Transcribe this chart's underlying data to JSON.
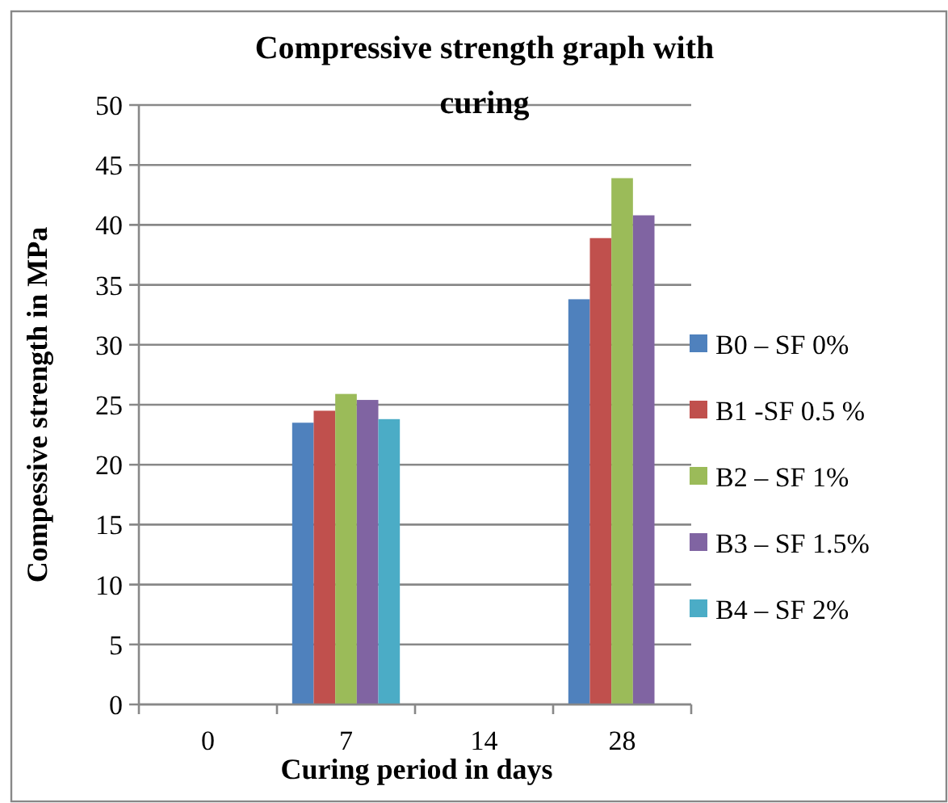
{
  "chart_data": {
    "type": "bar",
    "title": "Compressive strength graph with curing",
    "xlabel": "Curing period in days",
    "ylabel": "Compessive strength in MPa",
    "categories": [
      "0",
      "7",
      "14",
      "28"
    ],
    "series": [
      {
        "name": "B0 – SF 0%",
        "color": "#4f81bd",
        "values": [
          null,
          23.5,
          null,
          33.8
        ]
      },
      {
        "name": "B1 -SF 0.5 %",
        "color": "#c0504d",
        "values": [
          null,
          24.5,
          null,
          38.9
        ]
      },
      {
        "name": "B2 – SF 1%",
        "color": "#9bbb59",
        "values": [
          null,
          25.9,
          null,
          43.9
        ]
      },
      {
        "name": "B3 – SF 1.5%",
        "color": "#8064a2",
        "values": [
          null,
          25.4,
          null,
          40.8
        ]
      },
      {
        "name": "B4 – SF 2%",
        "color": "#4bacc6",
        "values": [
          null,
          23.8,
          null,
          null
        ]
      }
    ],
    "ylim": [
      0,
      50
    ],
    "yticks": [
      0,
      5,
      10,
      15,
      20,
      25,
      30,
      35,
      40,
      45,
      50
    ],
    "grid": "y",
    "legend": "right"
  }
}
